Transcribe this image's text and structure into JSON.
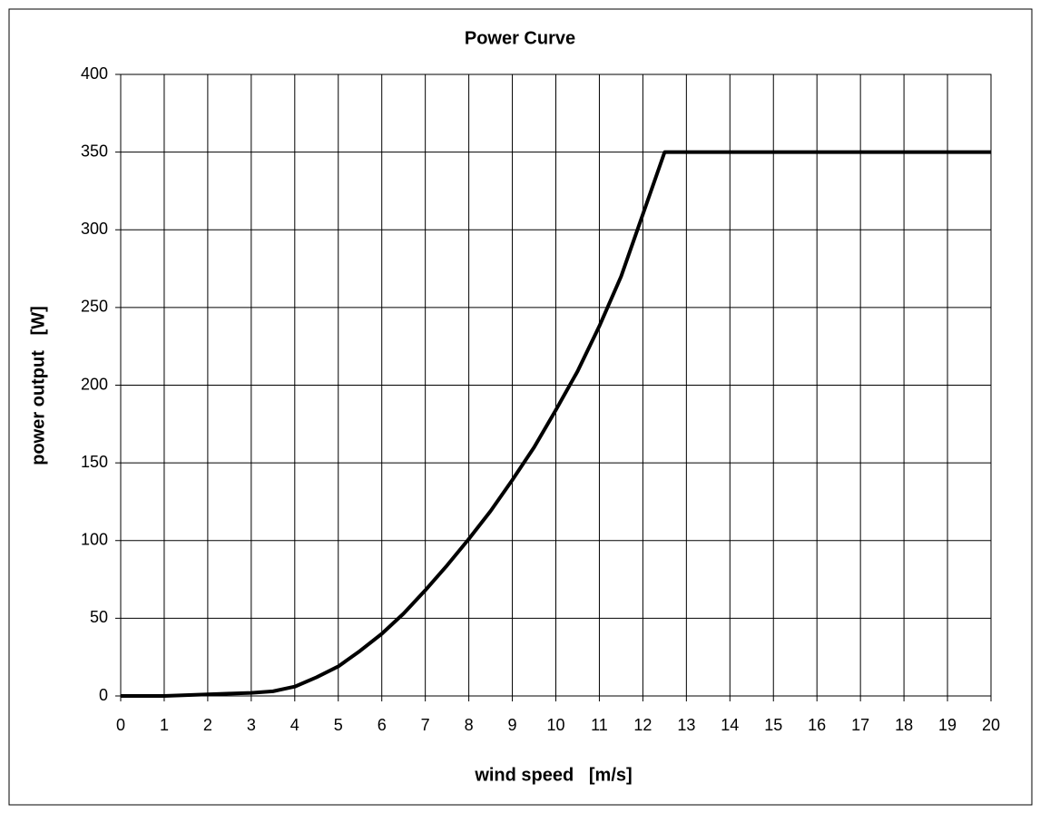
{
  "chart_data": {
    "type": "line",
    "title": "Power Curve",
    "x_label": "wind speed   [m/s]",
    "y_label": "power output   [W]",
    "x": [
      0,
      0.5,
      1,
      1.5,
      2,
      2.5,
      3,
      3.5,
      4,
      4.5,
      5,
      5.5,
      6,
      6.5,
      7,
      7.5,
      8,
      8.5,
      9,
      9.5,
      10,
      10.5,
      11,
      11.5,
      12,
      12.5,
      13,
      14,
      15,
      16,
      17,
      18,
      19,
      20
    ],
    "values": [
      0,
      0,
      0,
      0.5,
      1,
      1.5,
      2,
      3,
      6,
      12,
      19,
      29,
      40,
      53,
      68,
      84,
      101,
      119,
      139,
      160,
      184,
      209,
      238,
      270,
      310,
      350,
      350,
      350,
      350,
      350,
      350,
      350,
      350,
      350
    ],
    "color": "#000000",
    "xlim": [
      0,
      20
    ],
    "xticks": [
      0,
      1,
      2,
      3,
      4,
      5,
      6,
      7,
      8,
      9,
      10,
      11,
      12,
      13,
      14,
      15,
      16,
      17,
      18,
      19,
      20
    ],
    "ylim": [
      0,
      400
    ],
    "yticks": [
      0,
      50,
      100,
      150,
      200,
      250,
      300,
      350,
      400
    ],
    "grid": true
  }
}
